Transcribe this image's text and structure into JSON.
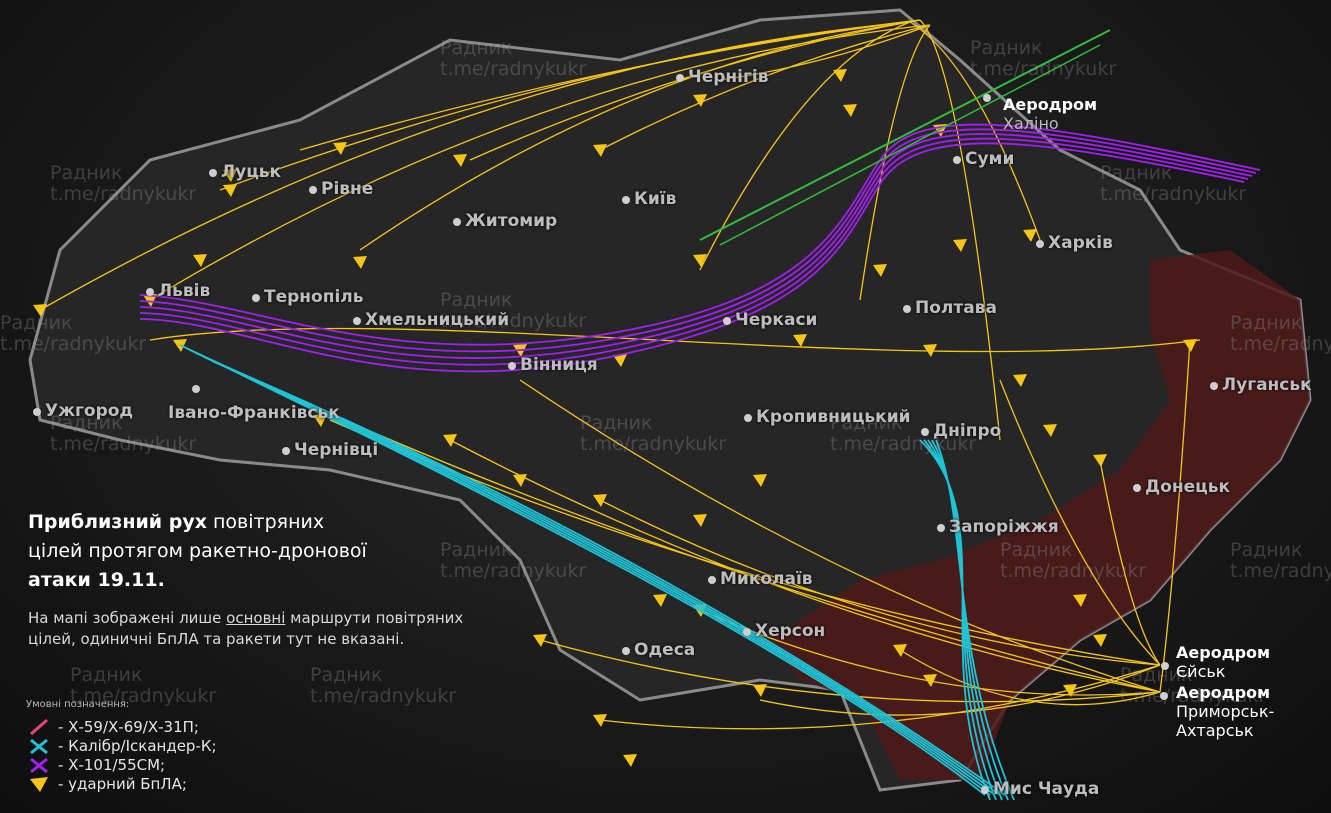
{
  "title": {
    "bold": "Приблизний рух",
    "rest_line1": " повітряних",
    "line2": "цілей протягом ракетно-дронової",
    "line3": "атаки 19.11."
  },
  "note": {
    "before": "На мапі зображені лише ",
    "underlined": "основні",
    "after": " маршрути повітряних цілей, одиничні БпЛА та ракети тут не вказані."
  },
  "legend": {
    "title": "Умовні позначення:",
    "items": [
      {
        "label": "- Х-59/Х-69/Х-31П;",
        "icon": "pink-missile-icon",
        "color": "#e8457a"
      },
      {
        "label": "- Калібр/Іскандер-К;",
        "icon": "cyan-cross-icon",
        "color": "#1fc3d6"
      },
      {
        "label": "- Х-101/55СМ;",
        "icon": "purple-cross-icon",
        "color": "#a020f0"
      },
      {
        "label": "- ударний БпЛА;",
        "icon": "yellow-drone-icon",
        "color": "#f5c518"
      }
    ]
  },
  "cities": [
    "Чернігів",
    "Луцьк",
    "Рівне",
    "Житомир",
    "Київ",
    "Суми",
    "Харків",
    "Львів",
    "Тернопіль",
    "Хмельницький",
    "Черкаси",
    "Полтава",
    "Луганськ",
    "Ужгород",
    "Івано-Франківськ",
    "Вінниця",
    "Кропивницький",
    "Дніпро",
    "Чернівці",
    "Донецьк",
    "Запоріжжя",
    "Миколаїв",
    "Херсон",
    "Одеса",
    "Мис Чауда"
  ],
  "airfields": [
    {
      "label": "Аеродром",
      "name": "Халіно"
    },
    {
      "label": "Аеродром",
      "name": "Єйськ"
    },
    {
      "label": "Аеродром",
      "name": "Приморськ-Ахтарськ"
    }
  ],
  "watermark": {
    "line1": "Радник",
    "line2": "t.me/radnykukr"
  },
  "colors": {
    "drone": "#f5c518",
    "kalibr": "#1fc3d6",
    "x101": "#a020f0",
    "x59": "#e8457a",
    "green_route": "#2fbf3a",
    "occupied": "#5a1c1c"
  }
}
